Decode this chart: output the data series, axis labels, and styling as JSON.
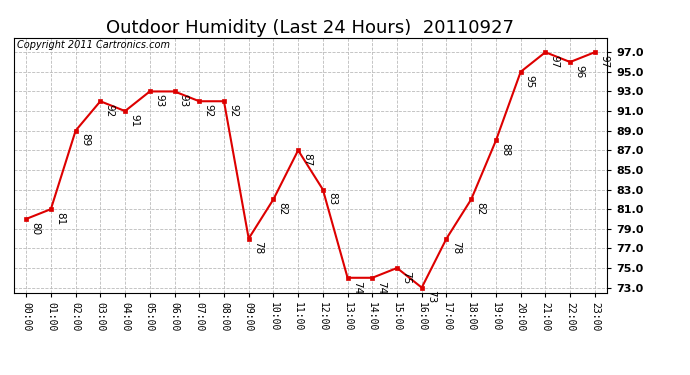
{
  "title": "Outdoor Humidity (Last 24 Hours)  20110927",
  "copyright": "Copyright 2011 Cartronics.com",
  "x_labels": [
    "00:00",
    "01:00",
    "02:00",
    "03:00",
    "04:00",
    "05:00",
    "06:00",
    "07:00",
    "08:00",
    "09:00",
    "10:00",
    "11:00",
    "12:00",
    "13:00",
    "14:00",
    "15:00",
    "16:00",
    "17:00",
    "18:00",
    "19:00",
    "20:00",
    "21:00",
    "22:00",
    "23:00"
  ],
  "y_values": [
    80,
    81,
    89,
    92,
    91,
    93,
    93,
    92,
    92,
    78,
    82,
    87,
    83,
    74,
    74,
    75,
    73,
    78,
    82,
    88,
    95,
    97,
    96,
    97
  ],
  "y_ticks": [
    73.0,
    75.0,
    77.0,
    79.0,
    81.0,
    83.0,
    85.0,
    87.0,
    89.0,
    91.0,
    93.0,
    95.0,
    97.0
  ],
  "ylim": [
    72.5,
    98.5
  ],
  "xlim": [
    -0.5,
    23.5
  ],
  "line_color": "#dd0000",
  "marker_color": "#dd0000",
  "bg_color": "#ffffff",
  "grid_color": "#bbbbbb",
  "title_fontsize": 13,
  "xlabel_fontsize": 7,
  "ylabel_fontsize": 8,
  "annot_fontsize": 7.5,
  "copyright_fontsize": 7
}
